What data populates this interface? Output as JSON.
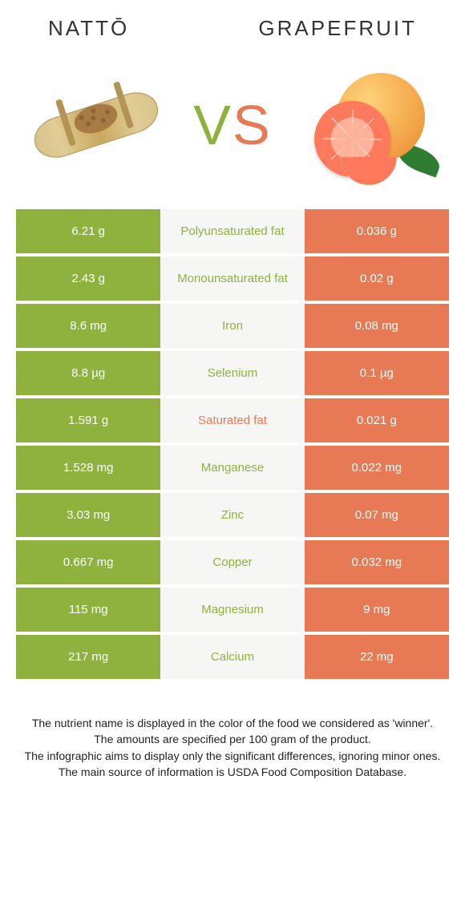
{
  "header": {
    "left_title": "nattō",
    "right_title": "Grapefruit",
    "vs": "VS"
  },
  "colors": {
    "left_bg": "#8fb23f",
    "right_bg": "#e77a54",
    "mid_bg": "#f6f6f4",
    "left_text": "#8fb23f",
    "right_text": "#e77a54",
    "vs_left": "#8fb23f",
    "vs_right": "#e77a54"
  },
  "rows": [
    {
      "nutrient": "Polyunsaturated fat",
      "left": "6.21 g",
      "right": "0.036 g",
      "winner": "left"
    },
    {
      "nutrient": "Monounsaturated fat",
      "left": "2.43 g",
      "right": "0.02 g",
      "winner": "left"
    },
    {
      "nutrient": "Iron",
      "left": "8.6 mg",
      "right": "0.08 mg",
      "winner": "left"
    },
    {
      "nutrient": "Selenium",
      "left": "8.8 µg",
      "right": "0.1 µg",
      "winner": "left"
    },
    {
      "nutrient": "Saturated fat",
      "left": "1.591 g",
      "right": "0.021 g",
      "winner": "right"
    },
    {
      "nutrient": "Manganese",
      "left": "1.528 mg",
      "right": "0.022 mg",
      "winner": "left"
    },
    {
      "nutrient": "Zinc",
      "left": "3.03 mg",
      "right": "0.07 mg",
      "winner": "left"
    },
    {
      "nutrient": "Copper",
      "left": "0.667 mg",
      "right": "0.032 mg",
      "winner": "left"
    },
    {
      "nutrient": "Magnesium",
      "left": "115 mg",
      "right": "9 mg",
      "winner": "left"
    },
    {
      "nutrient": "Calcium",
      "left": "217 mg",
      "right": "22 mg",
      "winner": "left"
    }
  ],
  "notes": {
    "line1": "The nutrient name is displayed in the color of the food we considered as 'winner'.",
    "line2": "The amounts are specified per 100 gram of the product.",
    "line3": "The infographic aims to display only the significant differences, ignoring minor ones.",
    "line4": "The main source of information is USDA Food Composition Database."
  }
}
